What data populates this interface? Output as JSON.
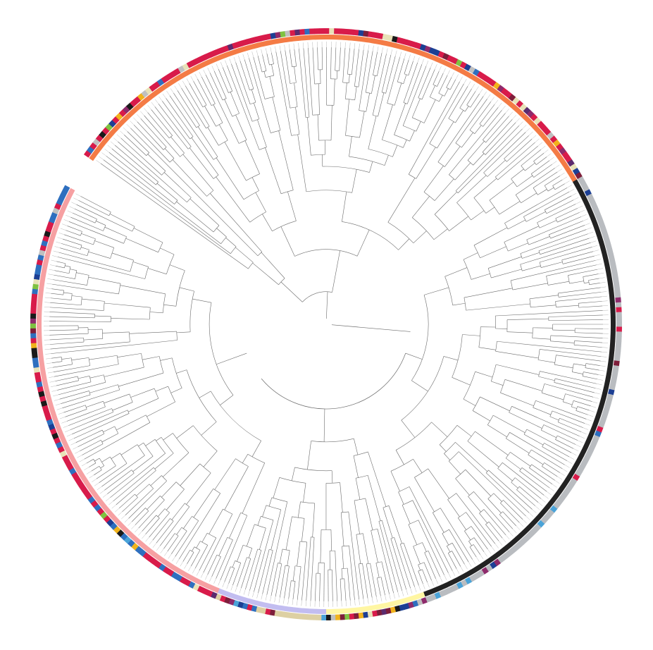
{
  "figure": {
    "type": "circular-phylogenetic-tree",
    "background": "#ffffff",
    "branch_color": "#6b6b6b",
    "leaf_tick_color": "#b8b8b8"
  },
  "clade_colors": {
    "orange": "#f47b45",
    "dark": "#222222",
    "grey": "#b9bcc0",
    "yellow": "#fff6a3",
    "beige": "#ddd0a3",
    "lavender": "#c2bdf0",
    "pink": "#f6a0a2"
  },
  "annotation_palette": [
    "#d81b4a",
    "#7e1e3a",
    "#1c3f94",
    "#2e6fbf",
    "#4aa3d8",
    "#8e2a6b",
    "#c0c0c0",
    "#7fc241",
    "#f1b31c",
    "#1a1a1a",
    "#e8e2b8",
    "#5b2b6e"
  ],
  "clades": [
    {
      "id": "orange",
      "inner_color": "orange",
      "outer_style": "mixed-red"
    },
    {
      "id": "dark-grey",
      "inner_color": "dark",
      "outer_style": "grey"
    },
    {
      "id": "yellow",
      "inner_color": "yellow",
      "outer_style": "mixed"
    },
    {
      "id": "lavender",
      "inner_color": "lavender",
      "outer_style": "beige"
    },
    {
      "id": "pink",
      "inner_color": "pink",
      "outer_style": "mixed-blue"
    }
  ]
}
